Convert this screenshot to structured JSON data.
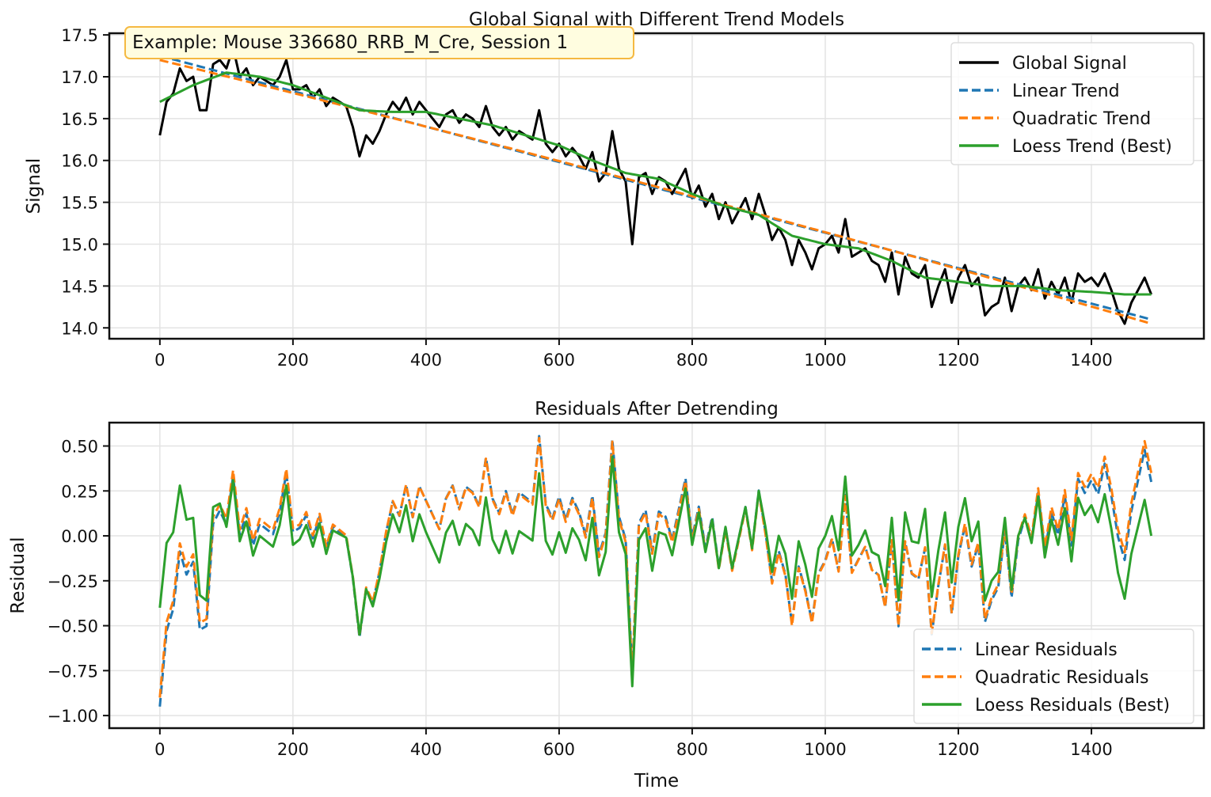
{
  "chart_data": [
    {
      "type": "line",
      "title": "Global Signal with Different Trend Models",
      "xlabel": "",
      "ylabel": "Signal",
      "xlim": [
        -76,
        1569
      ],
      "ylim": [
        13.87,
        17.52
      ],
      "xticks": [
        0,
        200,
        400,
        600,
        800,
        1000,
        1200,
        1400
      ],
      "yticks": [
        14.0,
        14.5,
        15.0,
        15.5,
        16.0,
        16.5,
        17.0,
        17.5
      ],
      "ytick_labels": [
        "14.0",
        "14.5",
        "15.0",
        "15.5",
        "16.0",
        "16.5",
        "17.0",
        "17.5"
      ],
      "grid": true,
      "legend_position": "top-right",
      "annotation": "Example: Mouse 336680_RRB_M_Cre, Session 1",
      "annotation_color": "#fffde0",
      "annotation_border": "#f5b942",
      "series": [
        {
          "name": "Global Signal",
          "color": "#000000",
          "style": "solid",
          "x_step": 10,
          "values": [
            16.3,
            16.7,
            16.8,
            17.1,
            16.95,
            17.0,
            16.6,
            16.6,
            17.15,
            17.2,
            17.1,
            17.35,
            17.0,
            17.1,
            16.9,
            17.0,
            16.95,
            16.9,
            17.0,
            17.2,
            16.85,
            16.85,
            16.9,
            16.75,
            16.85,
            16.65,
            16.75,
            16.7,
            16.65,
            16.4,
            16.05,
            16.3,
            16.2,
            16.35,
            16.55,
            16.7,
            16.6,
            16.75,
            16.55,
            16.7,
            16.6,
            16.5,
            16.4,
            16.55,
            16.6,
            16.45,
            16.55,
            16.5,
            16.4,
            16.65,
            16.4,
            16.3,
            16.4,
            16.25,
            16.35,
            16.3,
            16.25,
            16.6,
            16.2,
            16.1,
            16.2,
            16.05,
            16.15,
            16.05,
            15.9,
            16.1,
            15.75,
            15.85,
            16.35,
            15.9,
            15.75,
            15.0,
            15.8,
            15.85,
            15.6,
            15.8,
            15.75,
            15.6,
            15.75,
            15.9,
            15.55,
            15.7,
            15.45,
            15.6,
            15.3,
            15.5,
            15.25,
            15.4,
            15.55,
            15.3,
            15.6,
            15.35,
            15.05,
            15.2,
            15.05,
            14.75,
            15.05,
            14.9,
            14.7,
            14.95,
            15.0,
            15.1,
            14.9,
            15.3,
            14.85,
            14.9,
            14.95,
            14.8,
            14.75,
            14.55,
            14.9,
            14.4,
            14.85,
            14.65,
            14.6,
            14.75,
            14.25,
            14.5,
            14.7,
            14.3,
            14.6,
            14.75,
            14.5,
            14.6,
            14.15,
            14.25,
            14.3,
            14.6,
            14.2,
            14.5,
            14.6,
            14.45,
            14.7,
            14.35,
            14.55,
            14.4,
            14.6,
            14.3,
            14.65,
            14.55,
            14.6,
            14.5,
            14.65,
            14.45,
            14.2,
            14.05,
            14.3,
            14.45,
            14.6,
            14.4
          ]
        },
        {
          "name": "Linear Trend",
          "color": "#1f77b4",
          "style": "dashed",
          "x": [
            0,
            1490
          ],
          "values": [
            17.25,
            14.1
          ]
        },
        {
          "name": "Quadratic Trend",
          "color": "#ff7f0e",
          "style": "dashed",
          "x": [
            0,
            500,
            1000,
            1490
          ],
          "values": [
            17.2,
            16.2,
            15.17,
            14.05
          ]
        },
        {
          "name": "Loess Trend (Best)",
          "color": "#2ca02c",
          "style": "solid",
          "x": [
            0,
            50,
            100,
            150,
            200,
            250,
            300,
            350,
            400,
            450,
            500,
            550,
            600,
            650,
            700,
            750,
            800,
            850,
            900,
            950,
            1000,
            1050,
            1100,
            1150,
            1200,
            1250,
            1300,
            1350,
            1400,
            1450,
            1490
          ],
          "values": [
            16.7,
            16.9,
            17.05,
            17.0,
            16.9,
            16.75,
            16.6,
            16.58,
            16.58,
            16.5,
            16.42,
            16.3,
            16.18,
            16.0,
            15.85,
            15.78,
            15.6,
            15.45,
            15.35,
            15.1,
            15.0,
            14.95,
            14.8,
            14.6,
            14.55,
            14.5,
            14.5,
            14.45,
            14.43,
            14.4,
            14.4
          ]
        }
      ]
    },
    {
      "type": "line",
      "title": "Residuals After Detrending",
      "xlabel": "Time",
      "ylabel": "Residual",
      "xlim": [
        -76,
        1569
      ],
      "ylim": [
        -1.07,
        0.63
      ],
      "xticks": [
        0,
        200,
        400,
        600,
        800,
        1000,
        1200,
        1400
      ],
      "yticks": [
        -1.0,
        -0.75,
        -0.5,
        -0.25,
        0.0,
        0.25,
        0.5
      ],
      "ytick_labels": [
        "−1.00",
        "−0.75",
        "−0.50",
        "−0.25",
        "0.00",
        "0.25",
        "0.50"
      ],
      "grid": true,
      "legend_position": "bottom-right",
      "series": [
        {
          "name": "Linear Residuals",
          "color": "#1f77b4",
          "style": "dashed",
          "of": "Linear Trend"
        },
        {
          "name": "Quadratic Residuals",
          "color": "#ff7f0e",
          "style": "dashed",
          "of": "Quadratic Trend"
        },
        {
          "name": "Loess Residuals (Best)",
          "color": "#2ca02c",
          "style": "solid",
          "of": "Loess Trend (Best)"
        }
      ]
    }
  ]
}
